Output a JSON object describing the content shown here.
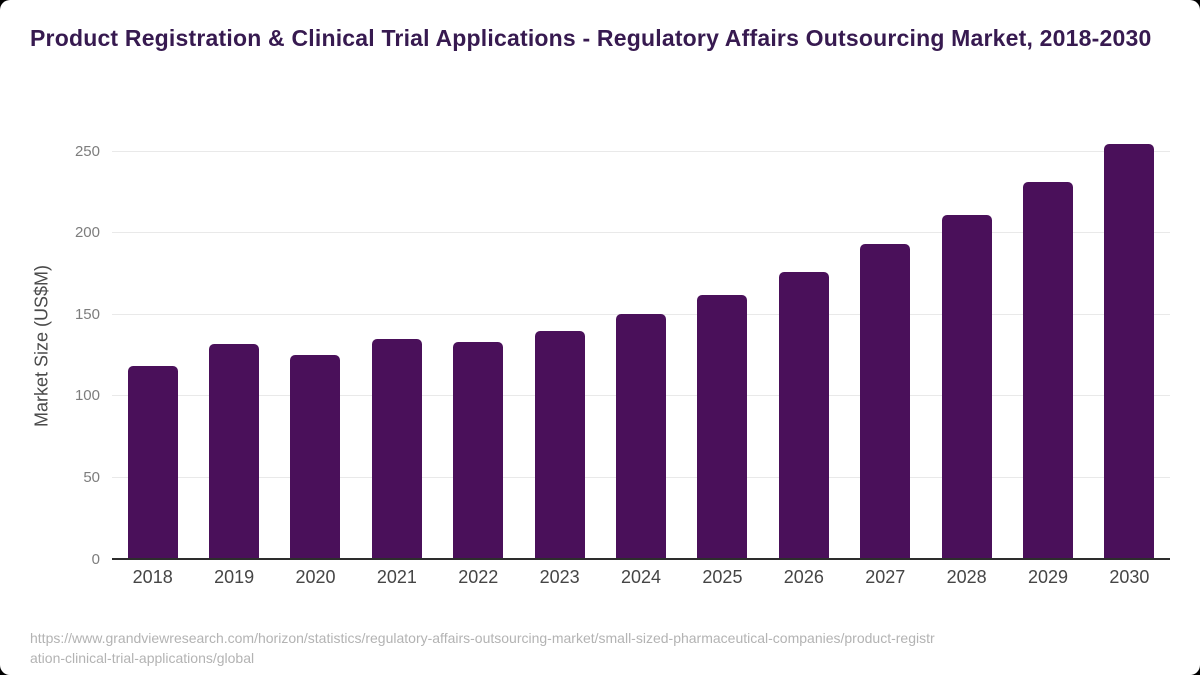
{
  "header": {
    "title": "Product Registration & Clinical Trial Applications - Regulatory Affairs Outsourcing Market, 2018-2030"
  },
  "chart_data": {
    "type": "bar",
    "title": "Product Registration & Clinical Trial Applications - Regulatory Affairs Outsourcing Market, 2018-2030",
    "categories": [
      "2018",
      "2019",
      "2020",
      "2021",
      "2022",
      "2023",
      "2024",
      "2025",
      "2026",
      "2027",
      "2028",
      "2029",
      "2030"
    ],
    "values": [
      118,
      132,
      125,
      135,
      133,
      140,
      150,
      162,
      176,
      193,
      211,
      231,
      254
    ],
    "xlabel": "",
    "ylabel": "Market Size (US$M)",
    "ylim": [
      0,
      250
    ],
    "yticks": [
      0,
      50,
      100,
      150,
      200,
      250
    ],
    "grid": "horizontal",
    "legend_position": "none",
    "bar_corner_radius": "rounded-top"
  },
  "colors": {
    "title": "#371a50",
    "bar": "#4a105a",
    "axis_label": "#4a4a4a",
    "y_tick": "#7d7d7d",
    "x_tick": "#454545",
    "gridline": "#e9e9e9",
    "baseline": "#2d2d2d",
    "source": "#b3b3b3",
    "card_bg": "#ffffff",
    "page_bg": "#000000"
  },
  "footer": {
    "source_url": "https://www.grandviewresearch.com/horizon/statistics/regulatory-affairs-outsourcing-market/small-sized-pharmaceutical-companies/product-registration-clinical-trial-applications/global"
  }
}
